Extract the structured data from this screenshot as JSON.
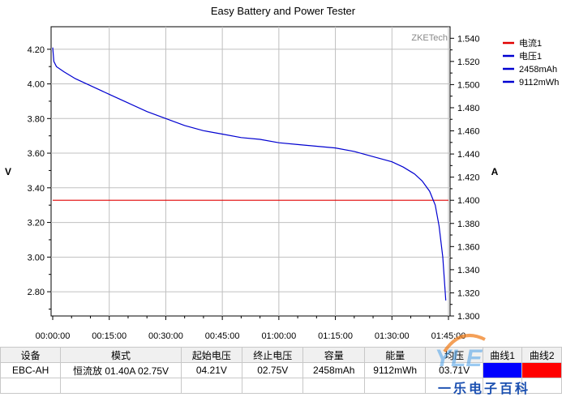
{
  "chart_data": {
    "type": "line",
    "title": "Easy Battery and Power Tester",
    "watermark": "ZKETech",
    "ylabel_left": "V",
    "ylabel_right": "A",
    "ylim_left": [
      2.66,
      4.33
    ],
    "ylim_right": [
      1.3,
      1.55
    ],
    "yticks_left": [
      "4.20",
      "4.00",
      "3.80",
      "3.60",
      "3.40",
      "3.20",
      "3.00",
      "2.80"
    ],
    "yticks_right": [
      "1.540",
      "1.520",
      "1.500",
      "1.480",
      "1.460",
      "1.440",
      "1.420",
      "1.400",
      "1.380",
      "1.360",
      "1.340",
      "1.320",
      "1.300"
    ],
    "xticks": [
      "00:00:00",
      "00:15:00",
      "00:30:00",
      "00:45:00",
      "01:00:00",
      "01:15:00",
      "01:30:00",
      "01:45:00"
    ],
    "xlim_minutes": [
      0,
      105
    ],
    "grid": true,
    "legend_position": "right",
    "legend": [
      {
        "label": "电流1",
        "color": "#e00000"
      },
      {
        "label": "电压1",
        "color": "#0000d0"
      },
      {
        "label": "2458mAh",
        "color": "#0000d0"
      },
      {
        "label": "9112mWh",
        "color": "#0000d0"
      }
    ],
    "series": [
      {
        "name": "电流1",
        "axis": "right",
        "color": "#e00000",
        "x_minutes": [
          0,
          105
        ],
        "values": [
          1.4,
          1.4
        ]
      },
      {
        "name": "电压1",
        "axis": "left",
        "color": "#0000d0",
        "x_minutes": [
          0,
          0.3,
          1,
          3,
          6,
          10,
          15,
          20,
          25,
          30,
          35,
          40,
          45,
          50,
          55,
          60,
          65,
          70,
          75,
          80,
          85,
          90,
          93,
          96,
          98,
          100,
          101.5,
          102.5,
          103.5,
          104.3
        ],
        "values": [
          4.21,
          4.13,
          4.1,
          4.07,
          4.03,
          3.99,
          3.94,
          3.89,
          3.84,
          3.8,
          3.76,
          3.73,
          3.71,
          3.69,
          3.68,
          3.66,
          3.65,
          3.64,
          3.63,
          3.61,
          3.58,
          3.55,
          3.52,
          3.48,
          3.44,
          3.38,
          3.3,
          3.18,
          3.0,
          2.75
        ]
      }
    ]
  },
  "table": {
    "headers": [
      "设备",
      "模式",
      "起始电压",
      "终止电压",
      "容量",
      "能量",
      "均压",
      "曲线1",
      "曲线2"
    ],
    "rows": [
      [
        "EBC-AH",
        "恒流放 01.40A 02.75V",
        "04.21V",
        "02.75V",
        "2458mAh",
        "9112mWh",
        "03.71V",
        "",
        ""
      ]
    ]
  },
  "watermark_site": "一乐电子百科"
}
